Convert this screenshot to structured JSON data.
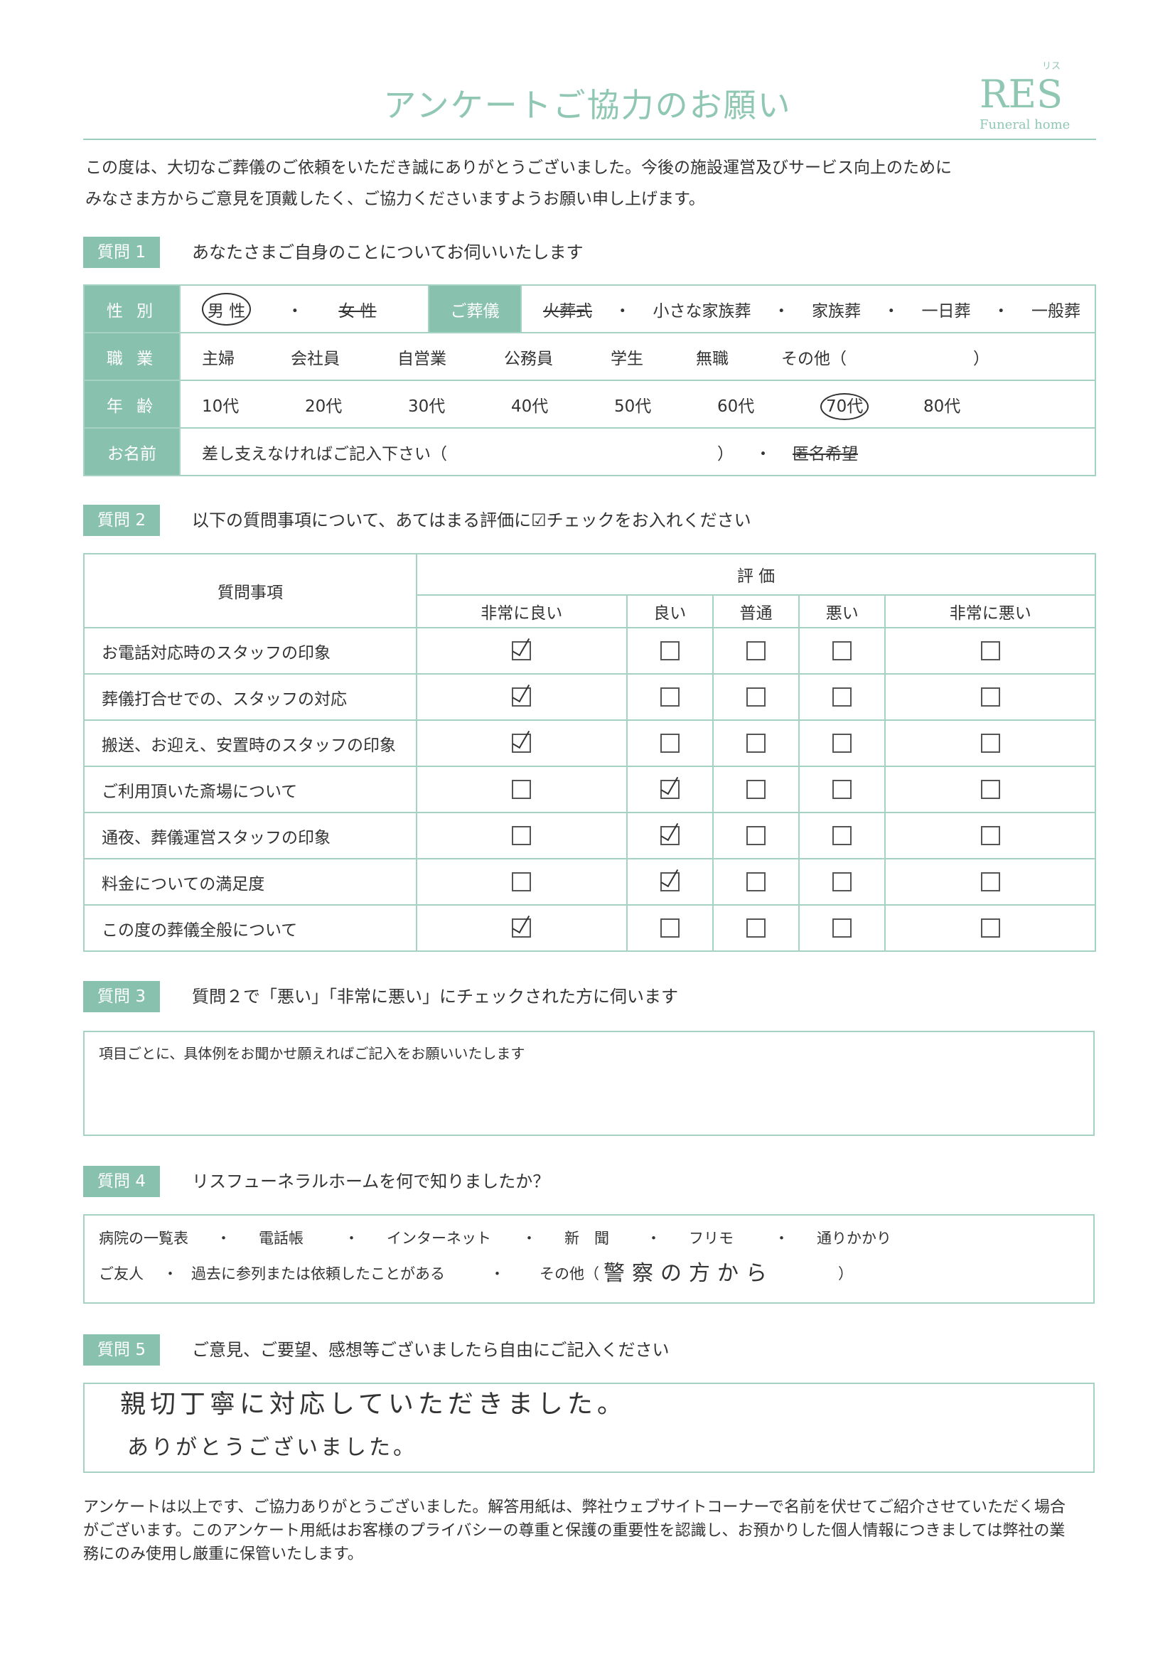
{
  "header": {
    "title": "アンケートご協力のお願い",
    "logo_main": "RES",
    "logo_kana": "リス",
    "logo_sub": "Funeral home"
  },
  "intro": [
    "この度は、大切なご葬儀のご依頼をいただき誠にありがとうございました。今後の施設運営及びサービス向上のために",
    "みなさま方からご意見を頂戴したく、ご協力くださいますようお願い申し上げます。"
  ],
  "q1": {
    "label": "質問 1",
    "text": "あなたさまご自身のことについてお伺いいたします",
    "gender_label": "性 別",
    "gender": [
      "男 性",
      "女 性"
    ],
    "gender_selected": "男 性",
    "funeral_label": "ご葬儀",
    "funeral": [
      "火葬式",
      "小さな家族葬",
      "家族葬",
      "一日葬",
      "一般葬"
    ],
    "funeral_selected": "火葬式",
    "job_label": "職 業",
    "jobs": [
      "主婦",
      "会社員",
      "自営業",
      "公務員",
      "学生",
      "無職",
      "その他（",
      "）"
    ],
    "job_selected": "会社員",
    "age_label": "年 齢",
    "ages": [
      "10代",
      "20代",
      "30代",
      "40代",
      "50代",
      "60代",
      "70代",
      "80代"
    ],
    "age_selected": "70代",
    "name_label": "お名前",
    "name_prompt": "差し支えなければご記入下さい（",
    "name_close": "）",
    "sep": "・",
    "anonymous": "匿名希望",
    "anonymous_selected": true
  },
  "q2": {
    "label": "質問 2",
    "text": "以下の質問事項について、あてはまる評価に☑チェックをお入れください",
    "col_item": "質問事項",
    "col_group": "評 価",
    "ratings": [
      "非常に良い",
      "良い",
      "普通",
      "悪い",
      "非常に悪い"
    ],
    "rows": [
      {
        "item": "お電話対応時のスタッフの印象",
        "checked": 0
      },
      {
        "item": "葬儀打合せでの、スタッフの対応",
        "checked": 0
      },
      {
        "item": "搬送、お迎え、安置時のスタッフの印象",
        "checked": 0
      },
      {
        "item": "ご利用頂いた斎場について",
        "checked": 1
      },
      {
        "item": "通夜、葬儀運営スタッフの印象",
        "checked": 1
      },
      {
        "item": "料金についての満足度",
        "checked": 1
      },
      {
        "item": "この度の葬儀全般について",
        "checked": 0
      }
    ]
  },
  "q3": {
    "label": "質問 3",
    "text": "質問２で「悪い」「非常に悪い」にチェックされた方に伺います",
    "box_prompt": "項目ごとに、具体例をお聞かせ願えればご記入をお願いいたします"
  },
  "q4": {
    "label": "質問 4",
    "text": "リスフューネラルホームを何で知りましたか？",
    "row1": [
      "病院の一覧表",
      "・",
      "電話帳",
      "・",
      "インターネット",
      "・",
      "新　聞",
      "・",
      "フリモ",
      "・",
      "通りかかり"
    ],
    "row2": [
      "ご友人",
      "・",
      "過去に参列または依頼したことがある",
      "・",
      "その他（"
    ],
    "other_answer": "警察の方から",
    "other_close": "）"
  },
  "q5": {
    "label": "質問 5",
    "text": "ご意見、ご要望、感想等ございましたら自由にご記入ください",
    "answer_line1": "親切丁寧に対応していただきました。",
    "answer_line2": "ありがとうございました。"
  },
  "footer": [
    "アンケートは以上です、ご協力ありがとうございました。解答用紙は、弊社ウェブサイトコーナーで名前を伏せてご紹介させていただく場合",
    "がございます。このアンケート用紙はお客様のプライバシーの尊重と保護の重要性を認識し、お預かりした個人情報につきましては弊社の業",
    "務にのみ使用し厳重に保管いたします。"
  ],
  "colors": {
    "accent": "#88c1ad",
    "border": "#a5d2c4",
    "title": "#8fc7b3"
  }
}
